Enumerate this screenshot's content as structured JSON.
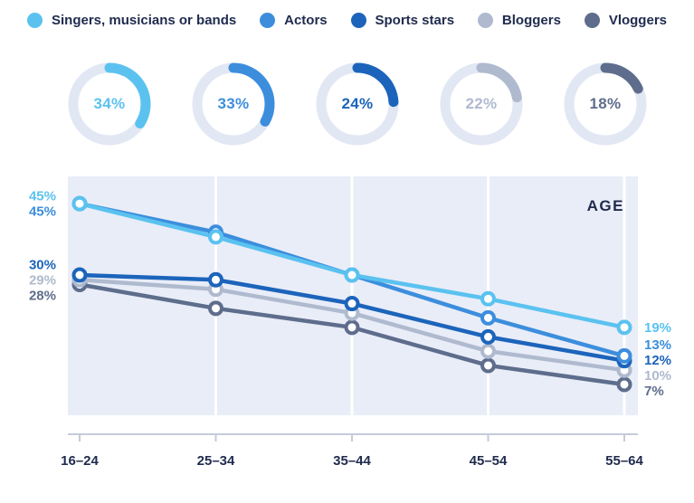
{
  "colors": {
    "text_dark": "#1F2B4D",
    "ring_track": "#E2E7F4",
    "plot_bg": "#E9EDF8",
    "grid": "#FFFFFF",
    "axis": "#C5CBD9"
  },
  "legend": {
    "items": [
      {
        "label": "Singers, musicians or bands",
        "color": "#5BC2F0"
      },
      {
        "label": "Actors",
        "color": "#3C8EDD"
      },
      {
        "label": "Sports stars",
        "color": "#1C64BB"
      },
      {
        "label": "Bloggers",
        "color": "#AFBACF"
      },
      {
        "label": "Vloggers",
        "color": "#5E6D8C"
      }
    ]
  },
  "donuts": [
    {
      "label": "34%",
      "value": 34,
      "color": "#5BC2F0"
    },
    {
      "label": "33%",
      "value": 33,
      "color": "#3C8EDD"
    },
    {
      "label": "24%",
      "value": 24,
      "color": "#1C64BB"
    },
    {
      "label": "22%",
      "value": 22,
      "color": "#AFBACF"
    },
    {
      "label": "18%",
      "value": 18,
      "color": "#5E6D8C"
    }
  ],
  "chart_data": {
    "type": "line",
    "title": "AGE",
    "x": [
      "16–24",
      "25–34",
      "35–44",
      "45–54",
      "55–64"
    ],
    "ylim": [
      0,
      50
    ],
    "legend_position": "top",
    "grid": "vertical-white-lines",
    "series": [
      {
        "name": "Singers, musicians or bands",
        "color": "#5BC2F0",
        "values": [
          45,
          38,
          30,
          25,
          19
        ],
        "start_label": "45%",
        "end_label": "19%"
      },
      {
        "name": "Actors",
        "color": "#3C8EDD",
        "values": [
          45,
          39,
          30,
          21,
          13
        ],
        "start_label": "45%",
        "end_label": "13%"
      },
      {
        "name": "Sports stars",
        "color": "#1C64BB",
        "values": [
          30,
          29,
          24,
          17,
          12
        ],
        "start_label": "30%",
        "end_label": "12%"
      },
      {
        "name": "Bloggers",
        "color": "#AFBACF",
        "values": [
          29,
          27,
          22,
          14,
          10
        ],
        "start_label": "29%",
        "end_label": "10%"
      },
      {
        "name": "Vloggers",
        "color": "#5E6D8C",
        "values": [
          28,
          23,
          19,
          11,
          7
        ],
        "start_label": "28%",
        "end_label": "7%"
      }
    ],
    "donut_values": [
      34,
      33,
      24,
      22,
      18
    ]
  }
}
